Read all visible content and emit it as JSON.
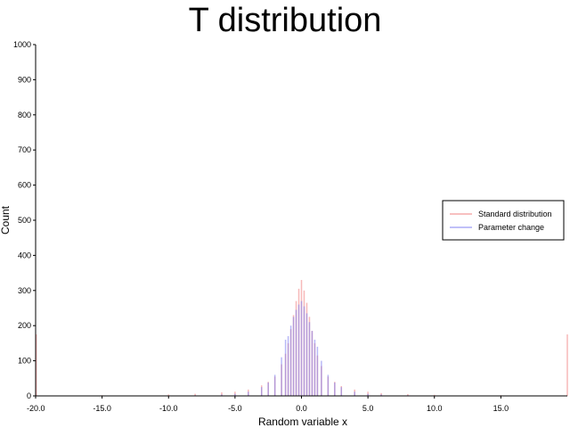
{
  "chart_data": {
    "type": "bar",
    "title": "T distribution",
    "xlabel": "Random variable x",
    "ylabel": "Count",
    "xlim": [
      -20,
      20
    ],
    "ylim": [
      0,
      1000
    ],
    "x_ticks": [
      "-20.0",
      "-15.0",
      "-10.0",
      "-5.0",
      "0.0",
      "5.0",
      "10.0",
      "15.0"
    ],
    "y_ticks": [
      "0",
      "100",
      "200",
      "300",
      "400",
      "500",
      "600",
      "700",
      "800",
      "900",
      "1000"
    ],
    "grid": false,
    "legend_position": "right",
    "bin_width": 0.1,
    "series": [
      {
        "name": "Standard distribution",
        "color": "#f08080",
        "x": [
          -20,
          -15,
          -10,
          -8,
          -6,
          -5,
          -4,
          -3,
          -2.5,
          -2,
          -1.5,
          -1.2,
          -1,
          -0.8,
          -0.6,
          -0.4,
          -0.2,
          0,
          0.2,
          0.4,
          0.6,
          0.8,
          1,
          1.2,
          1.5,
          2,
          2.5,
          3,
          4,
          5,
          6,
          8,
          10,
          15,
          20
        ],
        "values": [
          175,
          2,
          4,
          6,
          10,
          12,
          18,
          30,
          40,
          55,
          90,
          120,
          150,
          190,
          230,
          270,
          305,
          330,
          300,
          265,
          225,
          185,
          150,
          115,
          85,
          55,
          40,
          28,
          18,
          12,
          8,
          5,
          3,
          2,
          175
        ]
      },
      {
        "name": "Parameter change",
        "color": "#8080f0",
        "x": [
          -20,
          -15,
          -10,
          -8,
          -6,
          -5,
          -4,
          -3,
          -2.5,
          -2,
          -1.5,
          -1.2,
          -1,
          -0.8,
          -0.6,
          -0.4,
          -0.2,
          0,
          0.2,
          0.4,
          0.6,
          0.8,
          1,
          1.2,
          1.5,
          2,
          2.5,
          3,
          4,
          5,
          6,
          8,
          10,
          15,
          20
        ],
        "values": [
          0,
          0,
          1,
          2,
          4,
          6,
          12,
          25,
          38,
          60,
          110,
          160,
          170,
          200,
          225,
          245,
          260,
          270,
          255,
          235,
          210,
          185,
          160,
          140,
          100,
          60,
          38,
          25,
          12,
          6,
          4,
          2,
          1,
          0,
          0
        ]
      }
    ]
  }
}
